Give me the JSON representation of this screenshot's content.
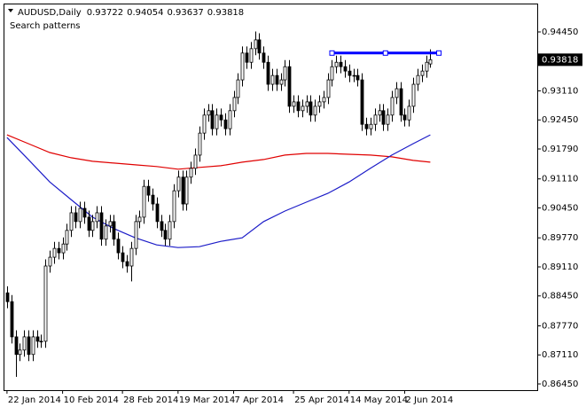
{
  "chart_data": {
    "type": "candlestick",
    "title": "AUDUSD,Daily",
    "subtitle": "Search patterns",
    "categories": [
      "22 Jan 2014",
      null,
      null,
      null,
      null,
      null,
      null,
      null,
      null,
      null,
      null,
      null,
      null,
      "10 Feb 2014",
      null,
      null,
      null,
      null,
      null,
      null,
      null,
      null,
      null,
      null,
      null,
      null,
      null,
      "28 Feb 2014",
      null,
      null,
      null,
      null,
      null,
      null,
      null,
      null,
      null,
      null,
      null,
      null,
      "19 Mar 2014",
      null,
      null,
      null,
      null,
      null,
      null,
      null,
      null,
      null,
      null,
      null,
      null,
      "7 Apr 2014",
      null,
      null,
      null,
      null,
      null,
      null,
      null,
      null,
      null,
      null,
      null,
      null,
      null,
      "25 Apr 2014",
      null,
      null,
      null,
      null,
      null,
      null,
      null,
      null,
      null,
      null,
      null,
      null,
      "14 May 2014",
      null,
      null,
      null,
      null,
      null,
      null,
      null,
      null,
      null,
      null,
      null,
      null,
      "2 Jun 2014",
      null,
      null,
      null,
      null,
      null,
      null
    ],
    "open": [
      0.8852,
      0.8832,
      0.8752,
      0.8712,
      0.8722,
      0.8752,
      0.8712,
      0.8752,
      0.8742,
      0.8742,
      0.8913,
      0.8933,
      0.8953,
      0.8943,
      0.8963,
      0.8994,
      0.9034,
      0.9014,
      0.9044,
      0.9024,
      0.8994,
      0.9014,
      0.9034,
      0.8974,
      0.9004,
      0.9014,
      0.8974,
      0.8943,
      0.8923,
      0.8913,
      0.8953,
      0.9014,
      0.9024,
      0.9094,
      0.9074,
      0.9054,
      0.9014,
      0.8994,
      0.8974,
      0.9014,
      0.9084,
      0.9115,
      0.9054,
      0.9115,
      0.9135,
      0.9165,
      0.9215,
      0.9256,
      0.9266,
      0.9225,
      0.9256,
      0.9245,
      0.9225,
      0.9266,
      0.9296,
      0.9336,
      0.9397,
      0.9376,
      0.9407,
      0.9427,
      0.9397,
      0.9376,
      0.9326,
      0.9346,
      0.9326,
      0.9336,
      0.9366,
      0.9276,
      0.9286,
      0.9266,
      0.9276,
      0.9286,
      0.9256,
      0.9276,
      0.9286,
      0.9296,
      0.9336,
      0.9366,
      0.9376,
      0.9366,
      0.9356,
      0.9346,
      0.9346,
      0.9336,
      0.9235,
      0.9225,
      0.9235,
      0.9256,
      0.9266,
      0.9235,
      0.9256,
      0.9296,
      0.9316,
      0.9256,
      0.9245,
      0.9276,
      0.9326,
      0.9346,
      0.9356,
      0.93722
    ],
    "high": [
      0.8867,
      0.8847,
      0.8767,
      0.8737,
      0.8767,
      0.8767,
      0.8767,
      0.8767,
      0.8757,
      0.8928,
      0.8948,
      0.8968,
      0.8968,
      0.8978,
      0.9009,
      0.9049,
      0.9049,
      0.9059,
      0.9059,
      0.9039,
      0.9029,
      0.9049,
      0.9049,
      0.9019,
      0.9029,
      0.9029,
      0.8989,
      0.8958,
      0.8938,
      0.8968,
      0.9029,
      0.9039,
      0.9109,
      0.9109,
      0.9089,
      0.9069,
      0.9029,
      0.9009,
      0.9029,
      0.9099,
      0.913,
      0.913,
      0.913,
      0.915,
      0.918,
      0.923,
      0.9271,
      0.9281,
      0.9281,
      0.9271,
      0.9271,
      0.926,
      0.9281,
      0.9311,
      0.9351,
      0.9412,
      0.9412,
      0.9422,
      0.9446,
      0.9442,
      0.9412,
      0.9391,
      0.9361,
      0.9361,
      0.9351,
      0.9381,
      0.9381,
      0.9301,
      0.9301,
      0.9291,
      0.9301,
      0.9301,
      0.9291,
      0.9301,
      0.9311,
      0.9351,
      0.9381,
      0.9391,
      0.9391,
      0.9381,
      0.9371,
      0.9361,
      0.9361,
      0.9351,
      0.925,
      0.925,
      0.9271,
      0.9281,
      0.9281,
      0.9271,
      0.9311,
      0.9331,
      0.9331,
      0.9271,
      0.9291,
      0.9341,
      0.9361,
      0.9371,
      0.9391,
      0.94054
    ],
    "low": [
      0.8817,
      0.8737,
      0.8661,
      0.8697,
      0.8707,
      0.8697,
      0.8697,
      0.8727,
      0.8727,
      0.8727,
      0.8898,
      0.8918,
      0.8928,
      0.8928,
      0.8948,
      0.8979,
      0.8999,
      0.8999,
      0.9009,
      0.8979,
      0.8979,
      0.8999,
      0.8959,
      0.8959,
      0.8989,
      0.8959,
      0.8928,
      0.8908,
      0.8898,
      0.8878,
      0.8938,
      0.8999,
      0.9009,
      0.9059,
      0.9039,
      0.8999,
      0.8979,
      0.8959,
      0.8959,
      0.8999,
      0.9069,
      0.9039,
      0.9039,
      0.91,
      0.912,
      0.915,
      0.92,
      0.9241,
      0.921,
      0.921,
      0.923,
      0.921,
      0.921,
      0.9251,
      0.9281,
      0.9321,
      0.9361,
      0.9361,
      0.9392,
      0.9382,
      0.9361,
      0.9311,
      0.9311,
      0.9311,
      0.9311,
      0.9321,
      0.9261,
      0.9261,
      0.9251,
      0.9251,
      0.9261,
      0.9241,
      0.9241,
      0.9261,
      0.9271,
      0.9281,
      0.9321,
      0.9351,
      0.9351,
      0.9341,
      0.9331,
      0.9331,
      0.9321,
      0.922,
      0.921,
      0.921,
      0.922,
      0.9241,
      0.922,
      0.922,
      0.9241,
      0.9281,
      0.9241,
      0.923,
      0.923,
      0.9261,
      0.9311,
      0.9331,
      0.9341,
      0.93637
    ],
    "close": [
      0.8832,
      0.8752,
      0.8712,
      0.8722,
      0.8752,
      0.8712,
      0.8752,
      0.8742,
      0.8742,
      0.8913,
      0.8933,
      0.8953,
      0.8943,
      0.8963,
      0.8994,
      0.9034,
      0.9014,
      0.9044,
      0.9024,
      0.8994,
      0.9014,
      0.9034,
      0.8974,
      0.9004,
      0.9014,
      0.8974,
      0.8943,
      0.8923,
      0.8913,
      0.8953,
      0.9014,
      0.9024,
      0.9094,
      0.9074,
      0.9054,
      0.9014,
      0.8994,
      0.8974,
      0.9014,
      0.9084,
      0.9115,
      0.9054,
      0.9115,
      0.9135,
      0.9165,
      0.9215,
      0.9256,
      0.9266,
      0.9225,
      0.9256,
      0.9245,
      0.9225,
      0.9266,
      0.9296,
      0.9336,
      0.9397,
      0.9376,
      0.9407,
      0.9427,
      0.9397,
      0.9376,
      0.9326,
      0.9346,
      0.9326,
      0.9336,
      0.9366,
      0.9276,
      0.9286,
      0.9266,
      0.9276,
      0.9286,
      0.9256,
      0.9276,
      0.9286,
      0.9296,
      0.9336,
      0.9366,
      0.9376,
      0.9366,
      0.9356,
      0.9346,
      0.9346,
      0.9336,
      0.9235,
      0.9225,
      0.9235,
      0.9256,
      0.9266,
      0.9235,
      0.9256,
      0.9296,
      0.9316,
      0.9256,
      0.9245,
      0.9276,
      0.9326,
      0.9346,
      0.9356,
      0.9376,
      0.93818
    ],
    "candle_color": "#000000",
    "lines": [
      {
        "color": "#e00000",
        "x": [
          0,
          5,
          10,
          15,
          20,
          25,
          30,
          35,
          40,
          45,
          50,
          55,
          60,
          65,
          70,
          75,
          80,
          85,
          90,
          95,
          99
        ],
        "values": [
          0.9211,
          0.9191,
          0.9171,
          0.9159,
          0.9151,
          0.9147,
          0.9143,
          0.9139,
          0.9133,
          0.9137,
          0.9141,
          0.9149,
          0.9155,
          0.9165,
          0.9169,
          0.9169,
          0.9167,
          0.9165,
          0.9161,
          0.9153,
          0.9149
        ]
      },
      {
        "color": "#1c1cc8",
        "x": [
          0,
          5,
          10,
          15,
          20,
          25,
          30,
          35,
          40,
          45,
          50,
          55,
          60,
          65,
          70,
          75,
          80,
          85,
          90,
          95,
          99
        ],
        "values": [
          0.9205,
          0.9155,
          0.9104,
          0.9064,
          0.9024,
          0.8998,
          0.8977,
          0.8961,
          0.8955,
          0.8957,
          0.8969,
          0.8977,
          0.9014,
          0.9038,
          0.9058,
          0.9078,
          0.9104,
          0.9135,
          0.9165,
          0.9191,
          0.9211
        ]
      }
    ],
    "trendline": {
      "color": "#0000ff",
      "x": [
        76,
        101
      ],
      "values": [
        0.9397,
        0.9397
      ]
    },
    "xlim": [
      -0.6,
      124
    ],
    "ylim": [
      0.86309,
      0.95014
    ],
    "yticks": [
      {
        "value": 0.9445,
        "label": "0.94450"
      },
      {
        "value": 0.9311,
        "label": "0.93110"
      },
      {
        "value": 0.9245,
        "label": "0.92450"
      },
      {
        "value": 0.9179,
        "label": "0.91790"
      },
      {
        "value": 0.9111,
        "label": "0.91110"
      },
      {
        "value": 0.9045,
        "label": "0.90450"
      },
      {
        "value": 0.8977,
        "label": "0.89770"
      },
      {
        "value": 0.8911,
        "label": "0.89110"
      },
      {
        "value": 0.8845,
        "label": "0.88450"
      },
      {
        "value": 0.8777,
        "label": "0.87770"
      },
      {
        "value": 0.8711,
        "label": "0.87110"
      },
      {
        "value": 0.8645,
        "label": "0.86450"
      }
    ],
    "grid": false
  }
}
